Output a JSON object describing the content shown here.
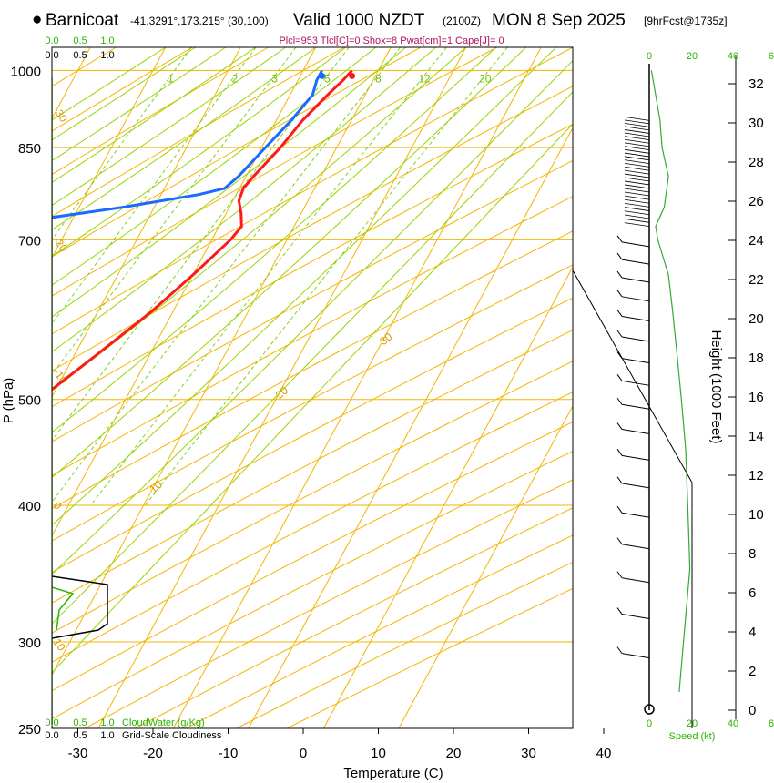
{
  "header": {
    "bullet": "●",
    "station": "Barnicoat",
    "location": "-41.3291°,173.215° (30,100)",
    "valid": "Valid 1000 NZDT",
    "zulu": "(2100Z)",
    "date": "MON 8 Sep 2025",
    "forecast": "[9hrFcst@1735z]",
    "subtitle": "Plcl=953 Tlcl[C]=0 Shox=8 Pwat[cm]=1 Cape[J]= 0"
  },
  "colors": {
    "temperature": "#ff1a1a",
    "dewpoint": "#1a6aff",
    "isotherm": "#f5b400",
    "dry_adiabat": "#f5b400",
    "moist_adiabat": "#9ad400",
    "mixing_ratio": "#7fd11f",
    "wind_speed": "#33aa33"
  },
  "chart_data": {
    "type": "skew-t",
    "title": "Skew-T log-P sounding",
    "xlabel": "Temperature (C)",
    "ylabel": "P (hPa)",
    "right_ylabel": "Height (1000 Feet)",
    "x_ticks": [
      -30,
      -20,
      -10,
      0,
      10,
      20,
      30,
      40
    ],
    "p_ticks": [
      250,
      300,
      400,
      500,
      700,
      850,
      1000
    ],
    "height_ticks_kft": [
      0,
      2,
      4,
      6,
      8,
      10,
      12,
      14,
      16,
      18,
      20,
      22,
      24,
      26,
      28,
      30,
      32
    ],
    "isotherm_labels": [
      "0",
      "10",
      "20",
      "30"
    ],
    "left_temp_labels": [
      "10",
      "0",
      "-10",
      "-20",
      "-30"
    ],
    "mixing_ratio_labels": [
      "1",
      "2",
      "3",
      "5",
      "8",
      "12",
      "20"
    ],
    "temperature_profile": [
      {
        "p": 1000,
        "t": 6.5
      },
      {
        "p": 980,
        "t": 6.0
      },
      {
        "p": 950,
        "t": 5.0
      },
      {
        "p": 900,
        "t": 3.5
      },
      {
        "p": 850,
        "t": 2.5
      },
      {
        "p": 800,
        "t": 1.0
      },
      {
        "p": 780,
        "t": 0.5
      },
      {
        "p": 760,
        "t": 0.8
      },
      {
        "p": 740,
        "t": 2.0
      },
      {
        "p": 720,
        "t": 3.0
      },
      {
        "p": 700,
        "t": 2.5
      },
      {
        "p": 650,
        "t": 0.0
      },
      {
        "p": 600,
        "t": -3.0
      },
      {
        "p": 550,
        "t": -7.0
      },
      {
        "p": 500,
        "t": -11.5
      },
      {
        "p": 450,
        "t": -16.5
      },
      {
        "p": 400,
        "t": -22.0
      },
      {
        "p": 350,
        "t": -28.5
      },
      {
        "p": 320,
        "t": -33.0
      },
      {
        "p": 300,
        "t": -36.0
      },
      {
        "p": 285,
        "t": -38.0
      },
      {
        "p": 270,
        "t": -38.5
      }
    ],
    "dewpoint_profile": [
      {
        "p": 1000,
        "t": 2.5
      },
      {
        "p": 980,
        "t": 2.5
      },
      {
        "p": 950,
        "t": 3.0
      },
      {
        "p": 900,
        "t": 2.0
      },
      {
        "p": 850,
        "t": 0.5
      },
      {
        "p": 800,
        "t": -1.0
      },
      {
        "p": 780,
        "t": -2.0
      },
      {
        "p": 770,
        "t": -5.0
      },
      {
        "p": 750,
        "t": -14.0
      },
      {
        "p": 730,
        "t": -25.0
      },
      {
        "p": 715,
        "t": -30.0
      },
      {
        "p": 690,
        "t": -31.0
      },
      {
        "p": 650,
        "t": -30.5
      },
      {
        "p": 600,
        "t": -30.5
      },
      {
        "p": 550,
        "t": -33.5
      },
      {
        "p": 500,
        "t": -38.5
      },
      {
        "p": 480,
        "t": -40.5
      },
      {
        "p": 450,
        "t": -41.5
      },
      {
        "p": 400,
        "t": -40.5
      },
      {
        "p": 370,
        "t": -41.0
      },
      {
        "p": 340,
        "t": -44.5
      },
      {
        "p": 300,
        "t": -49.0
      },
      {
        "p": 285,
        "t": -50.0
      },
      {
        "p": 270,
        "t": -52.0
      }
    ],
    "cloud_panel": {
      "cloudwater_label": "CloudWater (g/Kg)",
      "cloudiness_label": "Grid-Scale Cloudiness",
      "cloudwater_ticks": [
        "0.0",
        "0.5",
        "1.0"
      ],
      "cloudiness_ticks": [
        "0.0",
        "0.5",
        "1.0"
      ]
    },
    "wind_panel": {
      "speed_label": "Speed (kt)",
      "speed_ticks": [
        "0",
        "20",
        "40",
        "6"
      ],
      "speed_profile": [
        {
          "p": 1000,
          "kt": 1
        },
        {
          "p": 950,
          "kt": 3
        },
        {
          "p": 900,
          "kt": 5
        },
        {
          "p": 850,
          "kt": 6
        },
        {
          "p": 800,
          "kt": 9
        },
        {
          "p": 750,
          "kt": 7
        },
        {
          "p": 720,
          "kt": 3
        },
        {
          "p": 700,
          "kt": 4
        },
        {
          "p": 650,
          "kt": 9
        },
        {
          "p": 600,
          "kt": 11
        },
        {
          "p": 550,
          "kt": 13
        },
        {
          "p": 500,
          "kt": 15
        },
        {
          "p": 450,
          "kt": 17
        },
        {
          "p": 400,
          "kt": 18
        },
        {
          "p": 350,
          "kt": 19
        },
        {
          "p": 300,
          "kt": 16
        },
        {
          "p": 270,
          "kt": 14
        }
      ]
    }
  }
}
